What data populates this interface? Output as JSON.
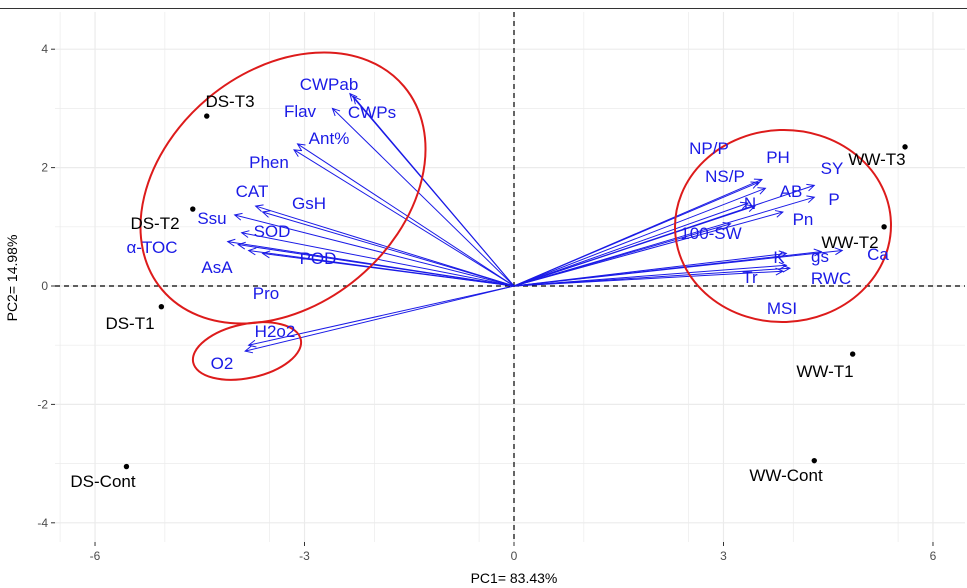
{
  "chart_data": {
    "type": "scatter",
    "subtype": "pca-biplot",
    "title": "",
    "xlabel": "PC1= 83.43%",
    "ylabel": "PC2= 14.98%",
    "xlim": [
      -6.9,
      6.2
    ],
    "ylim": [
      -4.3,
      4.2
    ],
    "xticks": [
      -6,
      -3,
      0,
      3,
      6
    ],
    "yticks": [
      -4,
      -2,
      0,
      2,
      4
    ],
    "grid": true,
    "zero_lines": "dashed",
    "colors": {
      "observations": "#000000",
      "variables": "#1a1ae6",
      "ellipses": "#dd1b1b",
      "grid": "#ebebeb"
    },
    "observations": [
      {
        "label": "DS-T3",
        "x": -4.4,
        "y": 2.87
      },
      {
        "label": "DS-T2",
        "x": -4.6,
        "y": 1.3
      },
      {
        "label": "DS-T1",
        "x": -5.05,
        "y": -0.35
      },
      {
        "label": "DS-Cont",
        "x": -5.55,
        "y": -3.05
      },
      {
        "label": "WW-T3",
        "x": 5.6,
        "y": 2.35
      },
      {
        "label": "WW-T2",
        "x": 5.3,
        "y": 1.0
      },
      {
        "label": "WW-T1",
        "x": 4.85,
        "y": -1.15
      },
      {
        "label": "WW-Cont",
        "x": 4.3,
        "y": -2.95
      }
    ],
    "variables": [
      {
        "label": "CWPab",
        "x": -2.35,
        "y": 3.25
      },
      {
        "label": "CWPs",
        "x": -2.3,
        "y": 3.2
      },
      {
        "label": "Flav",
        "x": -2.6,
        "y": 3.0
      },
      {
        "label": "Ant%",
        "x": -3.1,
        "y": 2.4
      },
      {
        "label": "Phen",
        "x": -3.15,
        "y": 2.3
      },
      {
        "label": "CAT",
        "x": -3.7,
        "y": 1.35
      },
      {
        "label": "GsH",
        "x": -3.6,
        "y": 1.25
      },
      {
        "label": "Ssu",
        "x": -4.0,
        "y": 1.2
      },
      {
        "label": "SOD",
        "x": -3.9,
        "y": 0.9
      },
      {
        "label": "α-TOC",
        "x": -4.1,
        "y": 0.75
      },
      {
        "label": "AsA",
        "x": -3.95,
        "y": 0.7
      },
      {
        "label": "POD",
        "x": -3.6,
        "y": 0.55
      },
      {
        "label": "Pro",
        "x": -3.8,
        "y": 0.6
      },
      {
        "label": "H2o2",
        "x": -3.8,
        "y": -1.0
      },
      {
        "label": "O2",
        "x": -3.85,
        "y": -1.1
      },
      {
        "label": "NP/P",
        "x": 3.55,
        "y": 1.8
      },
      {
        "label": "NS/P",
        "x": 3.5,
        "y": 1.75
      },
      {
        "label": "PH",
        "x": 3.6,
        "y": 1.65
      },
      {
        "label": "SY",
        "x": 4.3,
        "y": 1.7
      },
      {
        "label": "AB",
        "x": 3.35,
        "y": 1.4
      },
      {
        "label": "N",
        "x": 3.45,
        "y": 1.35
      },
      {
        "label": "P",
        "x": 4.3,
        "y": 1.5
      },
      {
        "label": "Pn",
        "x": 3.85,
        "y": 1.25
      },
      {
        "label": "100-SW",
        "x": 3.1,
        "y": 1.05
      },
      {
        "label": "K",
        "x": 3.9,
        "y": 0.55
      },
      {
        "label": "gs",
        "x": 4.4,
        "y": 0.58
      },
      {
        "label": "Ca",
        "x": 4.7,
        "y": 0.6
      },
      {
        "label": "Tr",
        "x": 3.95,
        "y": 0.3
      },
      {
        "label": "RWC",
        "x": 3.9,
        "y": 0.35
      },
      {
        "label": "MSI",
        "x": 3.85,
        "y": 0.25
      }
    ]
  }
}
